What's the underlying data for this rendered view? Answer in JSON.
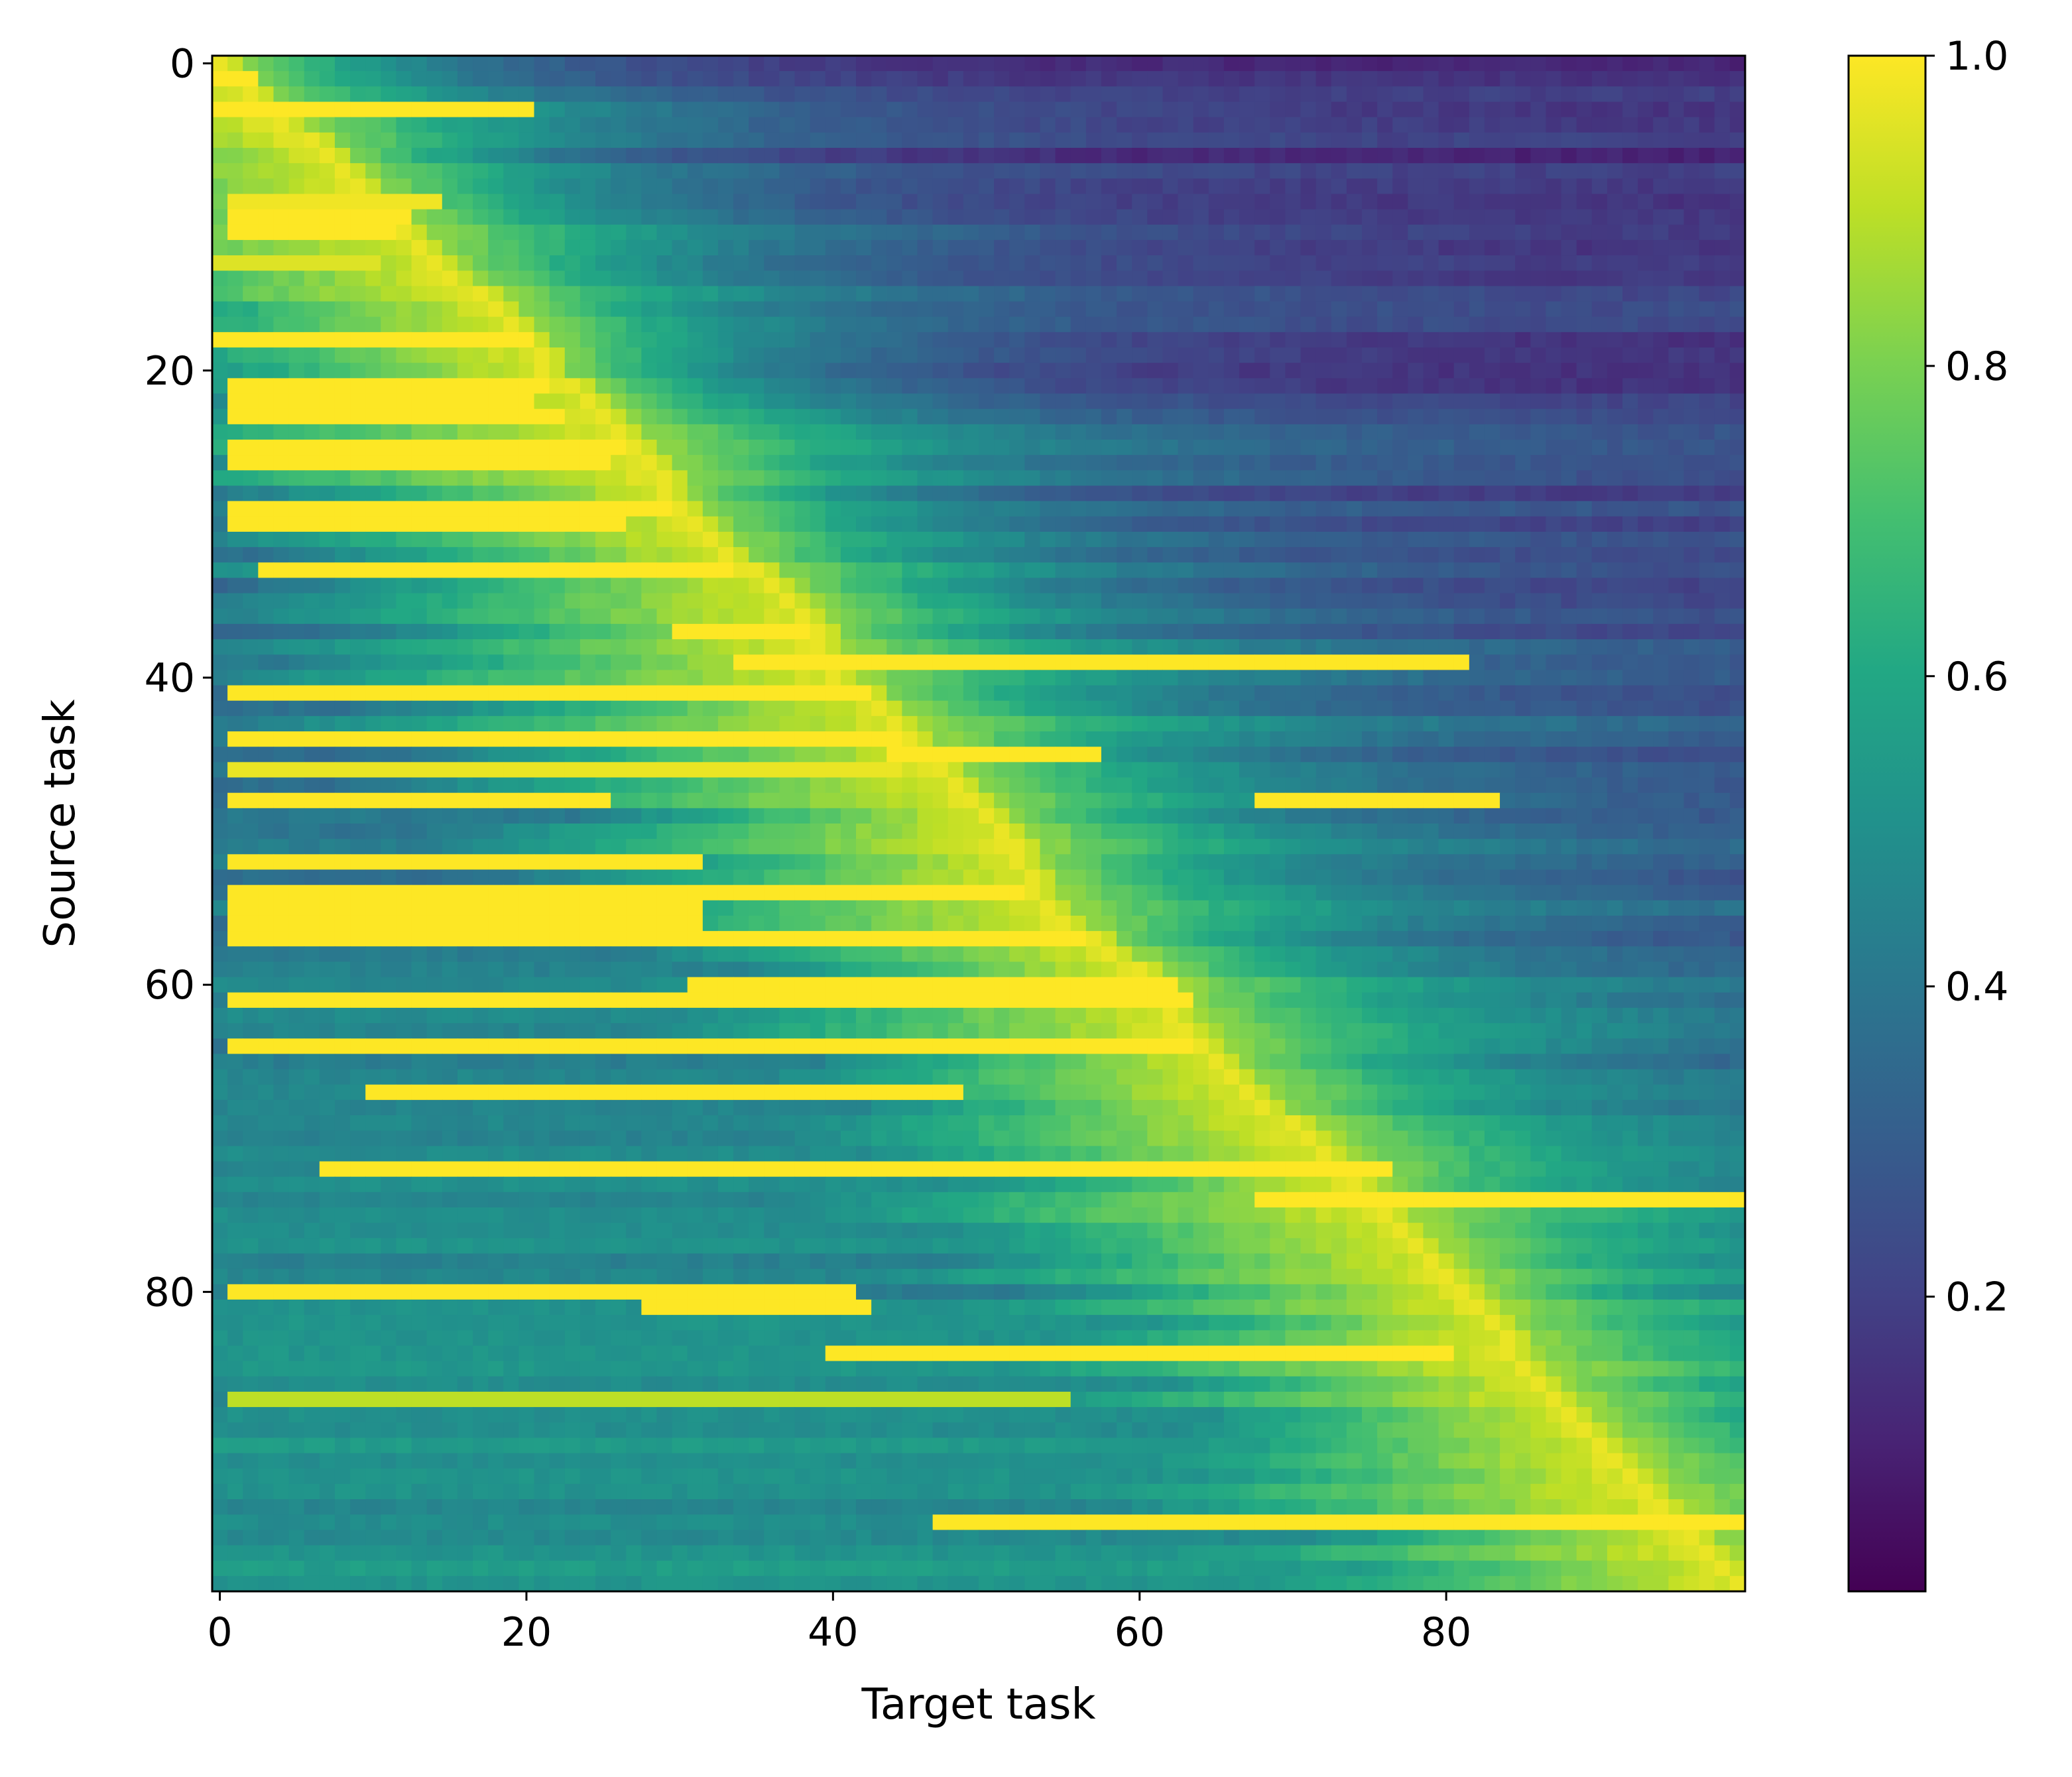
{
  "chart_data": {
    "type": "heatmap",
    "title": "",
    "xlabel": "Target task",
    "ylabel": "Source task",
    "rows": 100,
    "cols": 100,
    "xlim": [
      0,
      99
    ],
    "ylim": [
      0,
      99
    ],
    "y_axis_inverted": true,
    "xticks": [
      0,
      20,
      40,
      60,
      80
    ],
    "xtick_labels": [
      "0",
      "20",
      "40",
      "60",
      "80"
    ],
    "yticks": [
      0,
      20,
      40,
      60,
      80
    ],
    "ytick_labels": [
      "0",
      "20",
      "40",
      "60",
      "80"
    ],
    "colormap": "viridis",
    "colorbar": {
      "range": [
        0.0,
        1.0
      ],
      "ticks": [
        0.2,
        0.4,
        0.6,
        0.8,
        1.0
      ],
      "tick_labels": [
        "0.2",
        "0.4",
        "0.6",
        "0.8",
        "1.0"
      ]
    },
    "description_of_structure": "Diagonal band of high values (~1.0) running from top-left (0,0) to bottom-right (99,99); many rows also have long horizontal streaks of high values extending left of the diagonal; values far right of the diagonal are low (~0.0-0.2).",
    "diagonal_path": [
      [
        0,
        0
      ],
      [
        2,
        2
      ],
      [
        4,
        4
      ],
      [
        6,
        7
      ],
      [
        8,
        9
      ],
      [
        10,
        11
      ],
      [
        12,
        13
      ],
      [
        14,
        15
      ],
      [
        16,
        18
      ],
      [
        18,
        20
      ],
      [
        20,
        21
      ],
      [
        22,
        24
      ],
      [
        24,
        26
      ],
      [
        26,
        28
      ],
      [
        28,
        29
      ],
      [
        30,
        31
      ],
      [
        32,
        33
      ],
      [
        34,
        36
      ],
      [
        36,
        38
      ],
      [
        38,
        39
      ],
      [
        40,
        40
      ],
      [
        42,
        43
      ],
      [
        44,
        45
      ],
      [
        46,
        47
      ],
      [
        48,
        49
      ],
      [
        50,
        51
      ],
      [
        52,
        52
      ],
      [
        54,
        53
      ],
      [
        56,
        55
      ],
      [
        58,
        58
      ],
      [
        60,
        61
      ],
      [
        62,
        62
      ],
      [
        64,
        64
      ],
      [
        66,
        66
      ],
      [
        68,
        68
      ],
      [
        70,
        71
      ],
      [
        72,
        73
      ],
      [
        74,
        75
      ],
      [
        76,
        77
      ],
      [
        78,
        79
      ],
      [
        80,
        81
      ],
      [
        82,
        83
      ],
      [
        84,
        84
      ],
      [
        86,
        86
      ],
      [
        88,
        88
      ],
      [
        90,
        90
      ],
      [
        92,
        92
      ],
      [
        94,
        94
      ],
      [
        96,
        96
      ],
      [
        98,
        98
      ],
      [
        99,
        99
      ]
    ],
    "horizontal_streaks": [
      {
        "row": 1,
        "from": 0,
        "to": 2,
        "value": 1.0
      },
      {
        "row": 3,
        "from": 0,
        "to": 20,
        "value": 1.0
      },
      {
        "row": 9,
        "from": 1,
        "to": 14,
        "value": 0.98
      },
      {
        "row": 10,
        "from": 1,
        "to": 12,
        "value": 1.0
      },
      {
        "row": 11,
        "from": 1,
        "to": 11,
        "value": 1.0
      },
      {
        "row": 13,
        "from": 0,
        "to": 10,
        "value": 0.95
      },
      {
        "row": 18,
        "from": 0,
        "to": 20,
        "value": 1.0
      },
      {
        "row": 21,
        "from": 1,
        "to": 21,
        "value": 1.0
      },
      {
        "row": 22,
        "from": 1,
        "to": 20,
        "value": 1.0
      },
      {
        "row": 23,
        "from": 1,
        "to": 22,
        "value": 1.0
      },
      {
        "row": 25,
        "from": 1,
        "to": 26,
        "value": 1.0
      },
      {
        "row": 26,
        "from": 1,
        "to": 25,
        "value": 1.0
      },
      {
        "row": 29,
        "from": 1,
        "to": 29,
        "value": 1.0
      },
      {
        "row": 30,
        "from": 1,
        "to": 26,
        "value": 1.0
      },
      {
        "row": 33,
        "from": 3,
        "to": 33,
        "value": 1.0
      },
      {
        "row": 37,
        "from": 30,
        "to": 38,
        "value": 1.0
      },
      {
        "row": 39,
        "from": 34,
        "to": 81,
        "value": 1.0
      },
      {
        "row": 41,
        "from": 1,
        "to": 42,
        "value": 1.0
      },
      {
        "row": 44,
        "from": 1,
        "to": 44,
        "value": 1.0
      },
      {
        "row": 46,
        "from": 1,
        "to": 44,
        "value": 0.97
      },
      {
        "row": 45,
        "from": 44,
        "to": 57,
        "value": 1.0
      },
      {
        "row": 48,
        "from": 1,
        "to": 25,
        "value": 1.0
      },
      {
        "row": 48,
        "from": 68,
        "to": 83,
        "value": 1.0
      },
      {
        "row": 52,
        "from": 1,
        "to": 31,
        "value": 1.0
      },
      {
        "row": 54,
        "from": 1,
        "to": 52,
        "value": 1.0
      },
      {
        "row": 55,
        "from": 1,
        "to": 31,
        "value": 1.0
      },
      {
        "row": 56,
        "from": 1,
        "to": 31,
        "value": 1.0
      },
      {
        "row": 57,
        "from": 1,
        "to": 56,
        "value": 1.0
      },
      {
        "row": 60,
        "from": 31,
        "to": 62,
        "value": 1.0
      },
      {
        "row": 61,
        "from": 1,
        "to": 63,
        "value": 1.0
      },
      {
        "row": 64,
        "from": 1,
        "to": 63,
        "value": 1.0
      },
      {
        "row": 67,
        "from": 10,
        "to": 48,
        "value": 1.0
      },
      {
        "row": 72,
        "from": 7,
        "to": 76,
        "value": 1.0
      },
      {
        "row": 74,
        "from": 68,
        "to": 99,
        "value": 1.0
      },
      {
        "row": 80,
        "from": 1,
        "to": 41,
        "value": 1.0
      },
      {
        "row": 81,
        "from": 28,
        "to": 42,
        "value": 1.0
      },
      {
        "row": 84,
        "from": 40,
        "to": 80,
        "value": 1.0
      },
      {
        "row": 87,
        "from": 1,
        "to": 55,
        "value": 0.9
      },
      {
        "row": 95,
        "from": 47,
        "to": 99,
        "value": 1.0
      }
    ]
  }
}
